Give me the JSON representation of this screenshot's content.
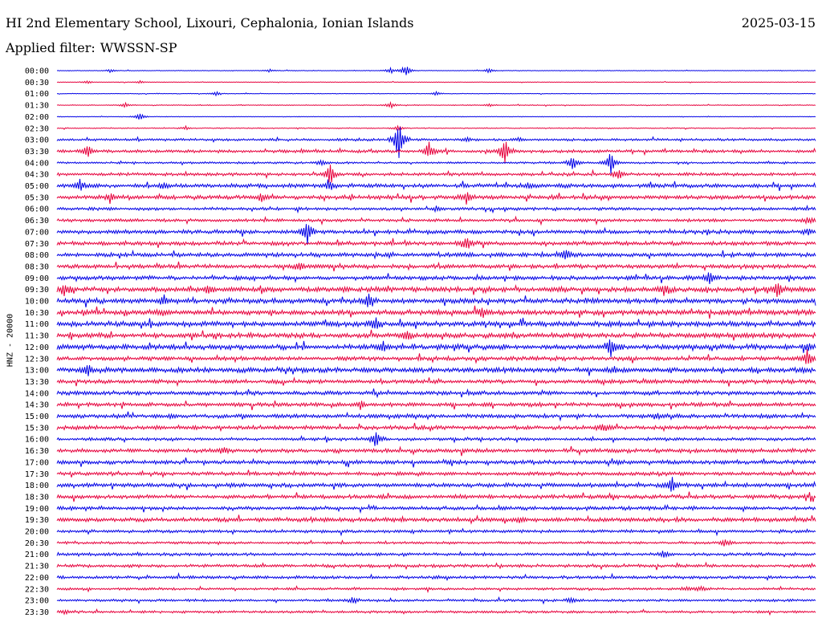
{
  "header": {
    "station": "HI 2nd Elementary School, Lixouri, Cephalonia, Ionian Islands",
    "date": "2025-03-15",
    "filter_label": "Applied filter:",
    "filter_value": "WWSSN-SP"
  },
  "channel_label": "HNZ - 20000",
  "chart_data": {
    "type": "line",
    "title": "HI 2nd Elementary School, Lixouri, Cephalonia, Ionian Islands",
    "ylabel": "HNZ - 20000",
    "trace_colors": [
      "#0000e6",
      "#e6003c"
    ],
    "grid": false,
    "rows": [
      {
        "label": "00:00",
        "noise": 0.3,
        "events": [
          [
            0.07,
            2
          ],
          [
            0.28,
            2
          ],
          [
            0.44,
            4
          ],
          [
            0.46,
            8
          ],
          [
            0.57,
            3
          ]
        ]
      },
      {
        "label": "00:30",
        "noise": 0.3,
        "events": [
          [
            0.04,
            2
          ],
          [
            0.11,
            2
          ]
        ]
      },
      {
        "label": "01:00",
        "noise": 0.3,
        "events": [
          [
            0.21,
            3
          ],
          [
            0.5,
            3
          ]
        ]
      },
      {
        "label": "01:30",
        "noise": 0.4,
        "events": [
          [
            0.09,
            3
          ],
          [
            0.44,
            4
          ],
          [
            0.57,
            2
          ]
        ]
      },
      {
        "label": "02:00",
        "noise": 0.3,
        "events": [
          [
            0.11,
            5
          ]
        ]
      },
      {
        "label": "02:30",
        "noise": 0.5,
        "events": [
          [
            0.17,
            2
          ],
          [
            0.45,
            3
          ]
        ]
      },
      {
        "label": "03:00",
        "noise": 1.2,
        "events": [
          [
            0.45,
            30
          ],
          [
            0.54,
            3
          ],
          [
            0.61,
            2
          ]
        ]
      },
      {
        "label": "03:30",
        "noise": 1.5,
        "events": [
          [
            0.04,
            8
          ],
          [
            0.49,
            12
          ],
          [
            0.59,
            18
          ]
        ]
      },
      {
        "label": "04:00",
        "noise": 1.0,
        "events": [
          [
            0.35,
            4
          ],
          [
            0.68,
            10
          ],
          [
            0.73,
            14
          ]
        ]
      },
      {
        "label": "04:30",
        "noise": 1.5,
        "events": [
          [
            0.36,
            14
          ],
          [
            0.74,
            6
          ]
        ]
      },
      {
        "label": "05:00",
        "noise": 2.0,
        "events": [
          [
            0.03,
            8
          ],
          [
            0.14,
            4
          ],
          [
            0.36,
            6
          ],
          [
            0.62,
            3
          ]
        ]
      },
      {
        "label": "05:30",
        "noise": 2.0,
        "events": [
          [
            0.07,
            6
          ],
          [
            0.27,
            5
          ],
          [
            0.54,
            8
          ]
        ]
      },
      {
        "label": "06:00",
        "noise": 1.5,
        "events": [
          [
            0.5,
            3
          ]
        ]
      },
      {
        "label": "06:30",
        "noise": 1.5,
        "events": [
          [
            0.99,
            4
          ]
        ]
      },
      {
        "label": "07:00",
        "noise": 2.0,
        "events": [
          [
            0.33,
            16
          ],
          [
            0.99,
            4
          ]
        ]
      },
      {
        "label": "07:30",
        "noise": 2.0,
        "events": [
          [
            0.54,
            10
          ]
        ]
      },
      {
        "label": "08:00",
        "noise": 2.0,
        "events": [
          [
            0.67,
            8
          ]
        ]
      },
      {
        "label": "08:30",
        "noise": 2.0,
        "events": [
          [
            0.32,
            6
          ]
        ]
      },
      {
        "label": "09:00",
        "noise": 2.0,
        "events": [
          [
            0.86,
            8
          ]
        ]
      },
      {
        "label": "09:30",
        "noise": 2.5,
        "events": [
          [
            0.01,
            8
          ],
          [
            0.2,
            6
          ],
          [
            0.8,
            6
          ],
          [
            0.95,
            9
          ]
        ]
      },
      {
        "label": "10:00",
        "noise": 2.5,
        "events": [
          [
            0.41,
            10
          ],
          [
            0.14,
            5
          ]
        ]
      },
      {
        "label": "10:30",
        "noise": 2.5,
        "events": [
          [
            0.56,
            6
          ],
          [
            0.14,
            3
          ]
        ]
      },
      {
        "label": "11:00",
        "noise": 2.5,
        "events": [
          [
            0.42,
            8
          ]
        ]
      },
      {
        "label": "11:30",
        "noise": 2.5,
        "events": [
          [
            0.46,
            6
          ]
        ]
      },
      {
        "label": "12:00",
        "noise": 2.5,
        "events": [
          [
            0.43,
            6
          ],
          [
            0.73,
            12
          ],
          [
            0.99,
            6
          ]
        ]
      },
      {
        "label": "12:30",
        "noise": 2.0,
        "events": [
          [
            0.99,
            12
          ]
        ]
      },
      {
        "label": "13:00",
        "noise": 2.5,
        "events": [
          [
            0.04,
            8
          ]
        ]
      },
      {
        "label": "13:30",
        "noise": 2.0,
        "events": []
      },
      {
        "label": "14:00",
        "noise": 2.0,
        "events": []
      },
      {
        "label": "14:30",
        "noise": 2.0,
        "events": [
          [
            0.4,
            4
          ]
        ]
      },
      {
        "label": "15:00",
        "noise": 2.0,
        "events": [
          [
            0.79,
            4
          ]
        ]
      },
      {
        "label": "15:30",
        "noise": 2.0,
        "events": [
          [
            0.72,
            5
          ]
        ]
      },
      {
        "label": "16:00",
        "noise": 1.5,
        "events": [
          [
            0.42,
            10
          ]
        ]
      },
      {
        "label": "16:30",
        "noise": 2.0,
        "events": [
          [
            0.22,
            4
          ]
        ]
      },
      {
        "label": "17:00",
        "noise": 2.0,
        "events": []
      },
      {
        "label": "17:30",
        "noise": 1.8,
        "events": []
      },
      {
        "label": "18:00",
        "noise": 2.0,
        "events": [
          [
            0.81,
            10
          ]
        ]
      },
      {
        "label": "18:30",
        "noise": 2.0,
        "events": []
      },
      {
        "label": "19:00",
        "noise": 1.8,
        "events": []
      },
      {
        "label": "19:30",
        "noise": 2.0,
        "events": [
          [
            0.61,
            4
          ]
        ]
      },
      {
        "label": "20:00",
        "noise": 1.5,
        "events": []
      },
      {
        "label": "20:30",
        "noise": 1.2,
        "events": [
          [
            0.88,
            6
          ]
        ]
      },
      {
        "label": "21:00",
        "noise": 1.5,
        "events": [
          [
            0.8,
            4
          ]
        ]
      },
      {
        "label": "21:30",
        "noise": 1.5,
        "events": []
      },
      {
        "label": "22:00",
        "noise": 1.5,
        "events": []
      },
      {
        "label": "22:30",
        "noise": 1.2,
        "events": [
          [
            0.83,
            3
          ],
          [
            0.85,
            3
          ]
        ]
      },
      {
        "label": "23:00",
        "noise": 1.2,
        "events": [
          [
            0.39,
            4
          ],
          [
            0.68,
            4
          ]
        ]
      },
      {
        "label": "23:30",
        "noise": 1.2,
        "events": [
          [
            0.01,
            3
          ]
        ]
      }
    ]
  }
}
